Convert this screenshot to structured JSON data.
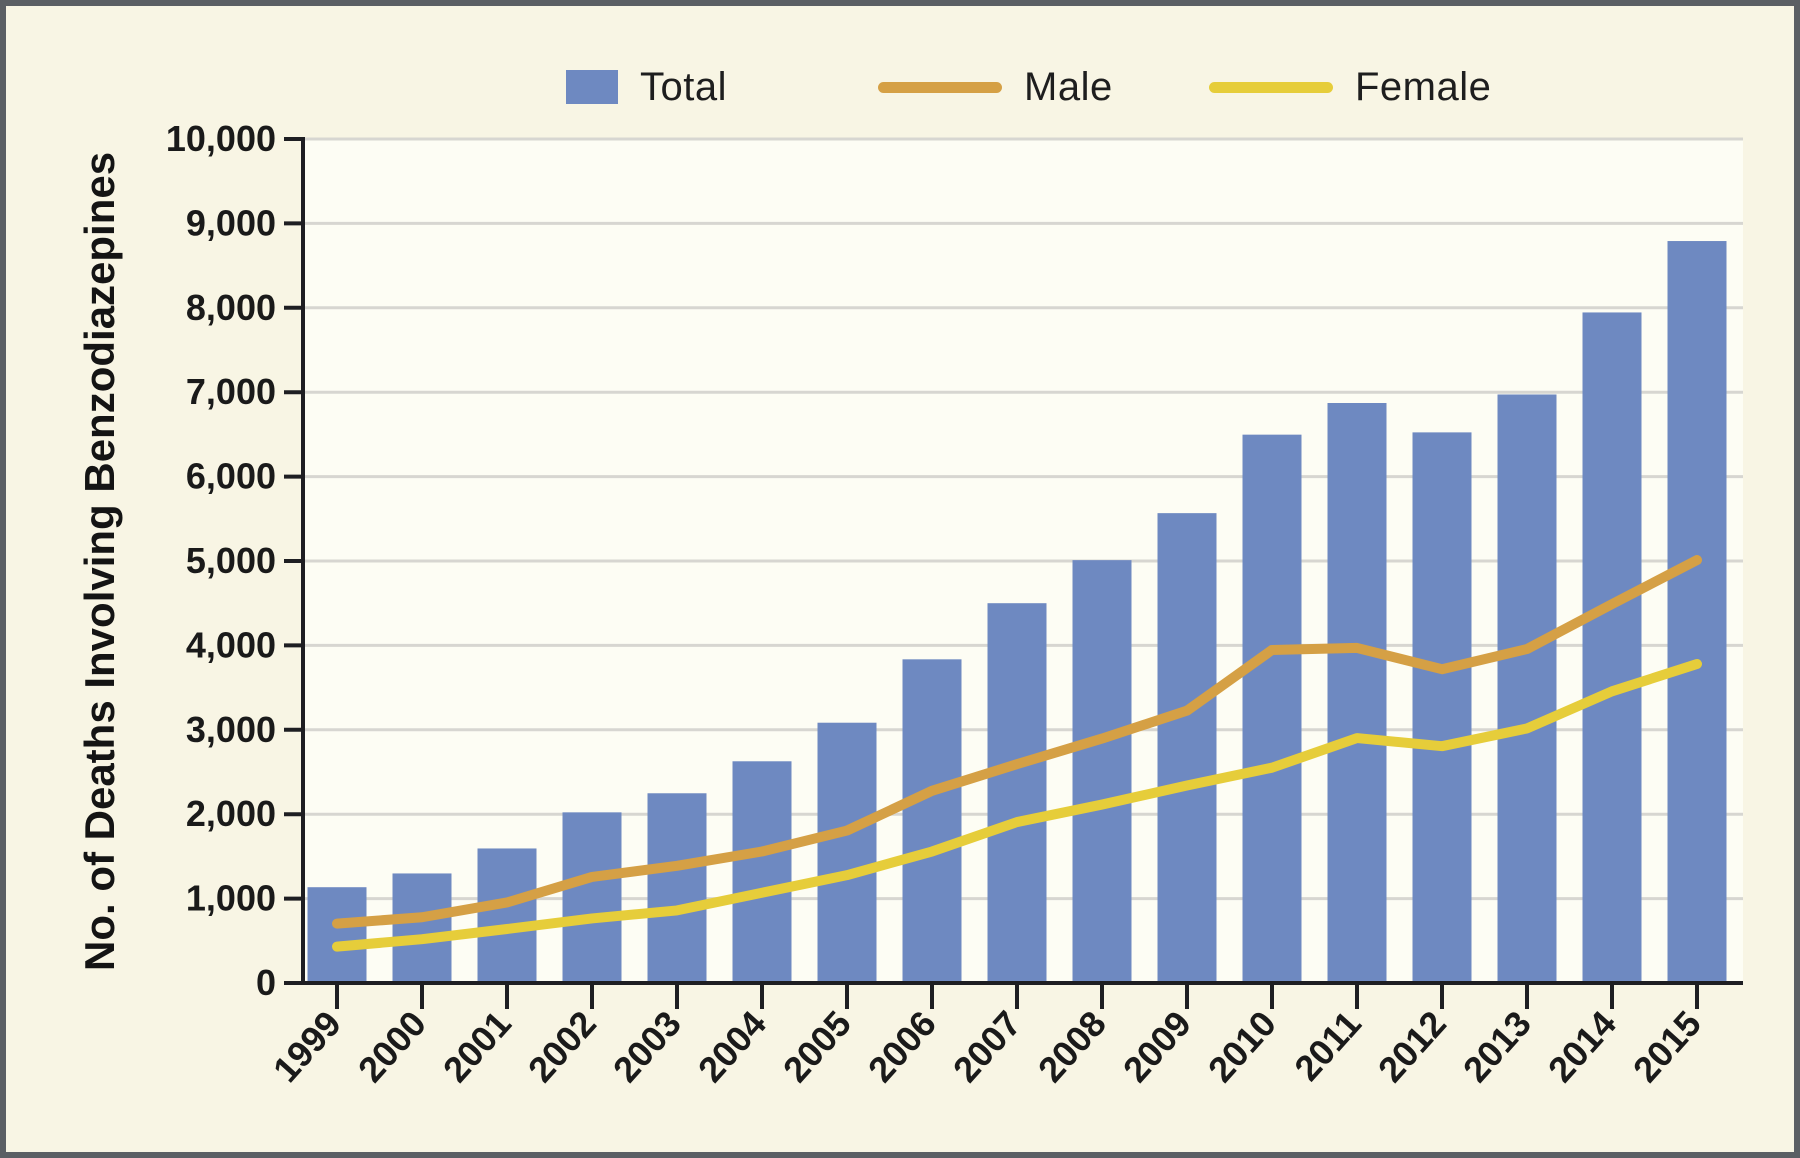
{
  "legend": {
    "items": [
      {
        "label": "Total",
        "swatch": "square"
      },
      {
        "label": "Male",
        "swatch": "line"
      },
      {
        "label": "Female",
        "swatch": "line"
      }
    ]
  },
  "y_axis": {
    "title": "No. of Deaths Involving Benzodiazepines"
  },
  "colors": {
    "total_bar": "#6e89c1",
    "male_line": "#d5a045",
    "female_line": "#e6cd3a",
    "plot_bg": "#fdfdf4",
    "outer_bg": "#f8f5e4",
    "frame": "#5b5f64",
    "grid": "#d7d6d1",
    "axis": "#1e1e22",
    "text": "#1a1a1a"
  },
  "chart_data": {
    "type": "combo-bar-line",
    "title": "",
    "categories": [
      "1999",
      "2000",
      "2001",
      "2002",
      "2003",
      "2004",
      "2005",
      "2006",
      "2007",
      "2008",
      "2009",
      "2010",
      "2011",
      "2012",
      "2013",
      "2014",
      "2015"
    ],
    "series": [
      {
        "name": "Total",
        "type": "bar",
        "color": "#6e89c1",
        "values": [
          1135,
          1298,
          1594,
          2022,
          2248,
          2627,
          3084,
          3835,
          4500,
          5010,
          5567,
          6497,
          6872,
          6524,
          6973,
          7945,
          8791
        ]
      },
      {
        "name": "Male",
        "type": "line",
        "color": "#d5a045",
        "values": [
          704,
          779,
          954,
          1257,
          1388,
          1558,
          1806,
          2277,
          2593,
          2896,
          3227,
          3946,
          3970,
          3718,
          3957,
          4489,
          5011
        ]
      },
      {
        "name": "Female",
        "type": "line",
        "color": "#e6cd3a",
        "values": [
          431,
          519,
          640,
          765,
          860,
          1069,
          1278,
          1558,
          1907,
          2114,
          2340,
          2551,
          2902,
          2806,
          3016,
          3456,
          3780
        ]
      }
    ],
    "xlabel": "",
    "ylabel": "No. of Deaths Involving Benzodiazepines",
    "ylim": [
      0,
      10000
    ],
    "y_tick_step": 1000,
    "y_tick_labels": [
      "0",
      "1,000",
      "2,000",
      "3,000",
      "4,000",
      "5,000",
      "6,000",
      "7,000",
      "8,000",
      "9,000",
      "10,000"
    ],
    "grid": true,
    "legend_position": "top"
  }
}
